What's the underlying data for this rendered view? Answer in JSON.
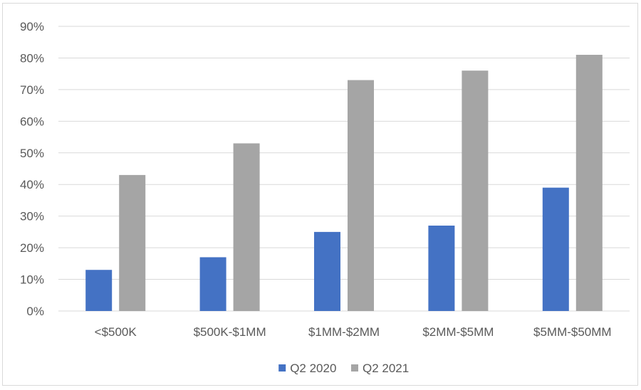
{
  "chart_data": {
    "type": "bar",
    "title": "",
    "xlabel": "",
    "ylabel": "",
    "categories": [
      "<$500K",
      "$500K-$1MM",
      "$1MM-$2MM",
      "$2MM-$5MM",
      "$5MM-$50MM"
    ],
    "series": [
      {
        "name": "Q2 2020",
        "color": "#4472c4",
        "values": [
          13,
          17,
          25,
          27,
          39
        ]
      },
      {
        "name": "Q2 2021",
        "color": "#a5a5a5",
        "values": [
          43,
          53,
          73,
          76,
          81
        ]
      }
    ],
    "ylim": [
      0,
      90
    ],
    "y_ticks": [
      "0%",
      "10%",
      "20%",
      "30%",
      "40%",
      "50%",
      "60%",
      "70%",
      "80%",
      "90%"
    ],
    "grid": true,
    "legend_position": "bottom",
    "gridline_color": "#d9d9d9"
  }
}
